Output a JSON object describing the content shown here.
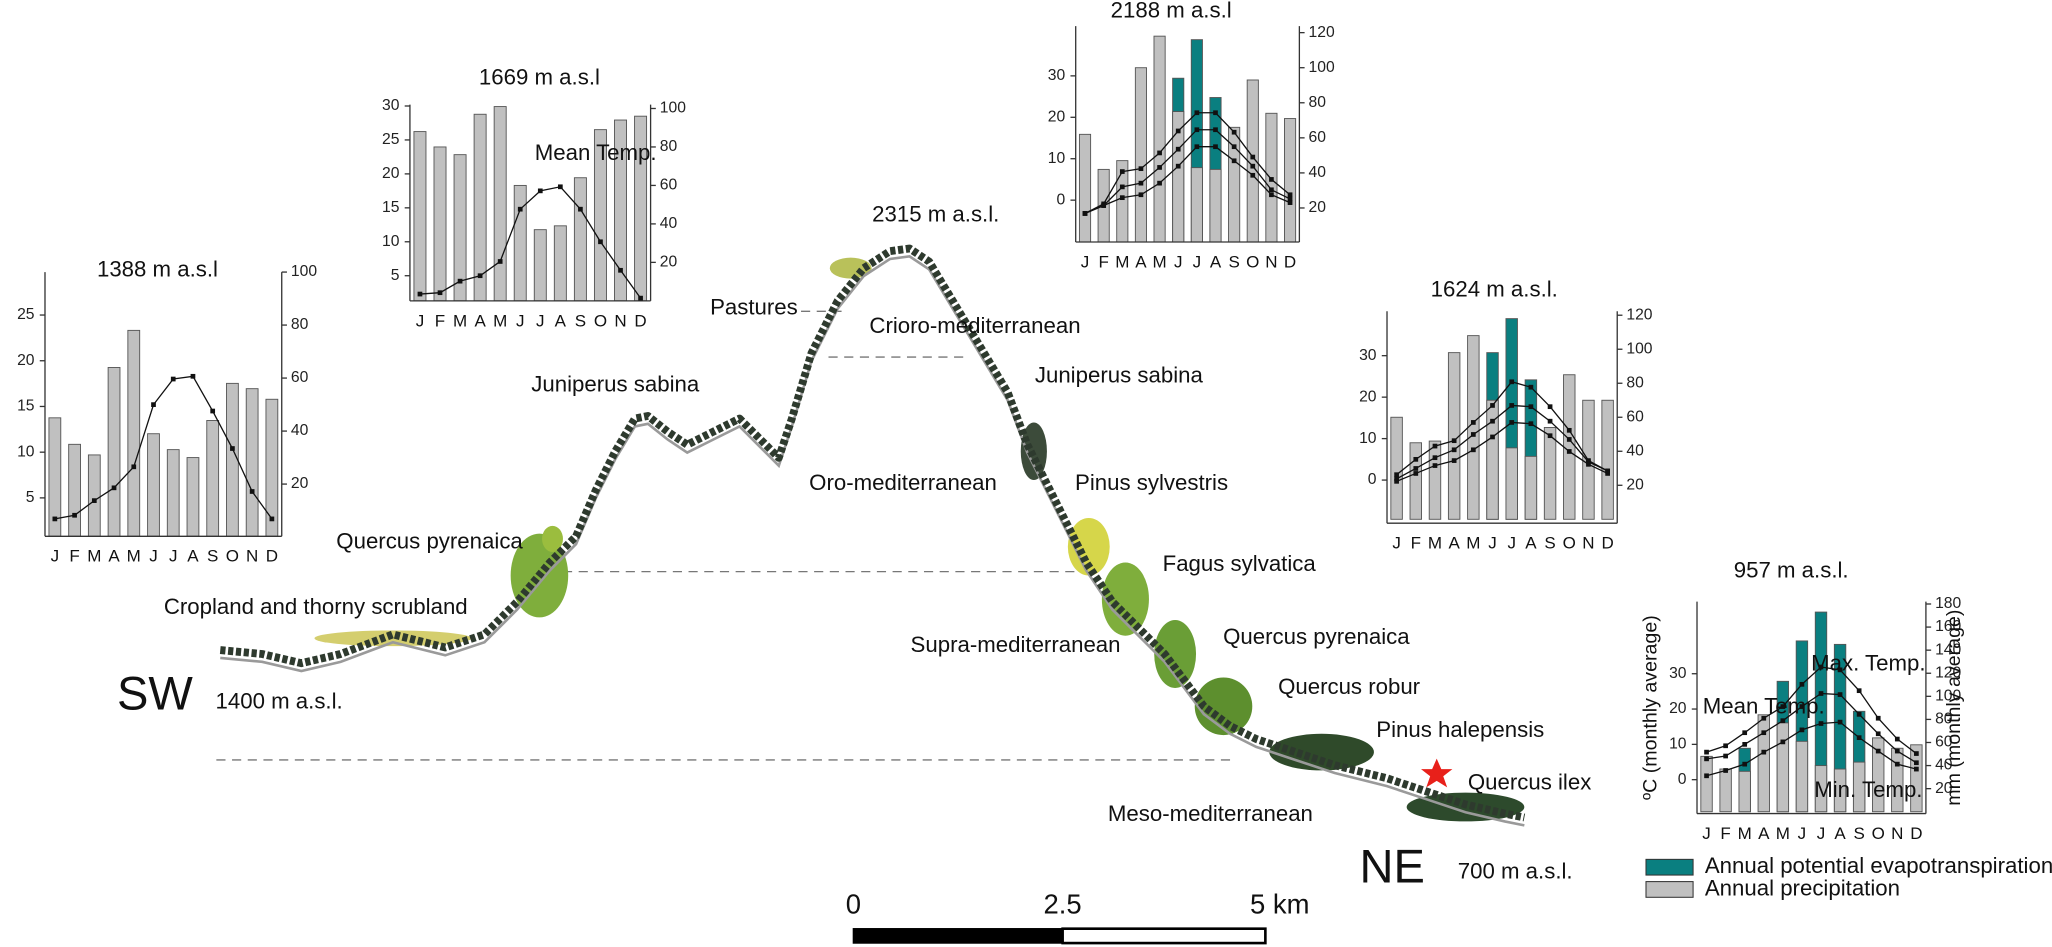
{
  "chart_data": [
    {
      "type": "bar",
      "title": "1388 m a.s.l",
      "categories": [
        "J",
        "F",
        "M",
        "A",
        "M",
        "J",
        "J",
        "A",
        "S",
        "O",
        "N",
        "D"
      ],
      "ylim": [
        0.8,
        29.7
      ],
      "yticks": [
        5,
        10,
        15,
        20,
        25
      ],
      "y2lim": [
        0.3,
        100
      ],
      "y2ticks": [
        20,
        40,
        60,
        80,
        100
      ],
      "series": [
        {
          "kind": "bar",
          "axis": "y2",
          "color": "#c0c0c0",
          "values": [
            45,
            35,
            31,
            64,
            78,
            39,
            33,
            30,
            44,
            58,
            56,
            52
          ]
        },
        {
          "kind": "line",
          "color": "#111111",
          "values": [
            2.7,
            3.1,
            4.7,
            6.1,
            8.4,
            15.2,
            18.0,
            18.3,
            14.5,
            10.4,
            5.7,
            2.7
          ]
        }
      ]
    },
    {
      "type": "bar",
      "title": "1669 m a.s.l",
      "categories": [
        "J",
        "F",
        "M",
        "A",
        "M",
        "J",
        "J",
        "A",
        "S",
        "O",
        "N",
        "D"
      ],
      "ylim": [
        1.3,
        30.2
      ],
      "yticks": [
        5,
        10,
        15,
        20,
        25,
        30
      ],
      "y2lim": [
        0,
        102
      ],
      "y2ticks": [
        20,
        40,
        60,
        80,
        100
      ],
      "annotations": [
        "Mean Temp."
      ],
      "series": [
        {
          "kind": "bar",
          "axis": "y2",
          "color": "#c0c0c0",
          "values": [
            88,
            80,
            76,
            97,
            101,
            60,
            37,
            39,
            64,
            89,
            94,
            96
          ]
        },
        {
          "kind": "line",
          "color": "#111111",
          "values": [
            2.3,
            2.5,
            4.2,
            5.0,
            7.1,
            14.8,
            17.5,
            18.1,
            14.8,
            10.0,
            5.8,
            1.7
          ]
        }
      ]
    },
    {
      "type": "bar",
      "title": "2188 m a.s.l",
      "categories": [
        "J",
        "F",
        "M",
        "A",
        "M",
        "J",
        "J",
        "A",
        "S",
        "O",
        "N",
        "D"
      ],
      "ylim": [
        -10.1,
        42
      ],
      "yticks": [
        0,
        10,
        20,
        30
      ],
      "y2lim": [
        0.6,
        123.7
      ],
      "y2ticks": [
        20,
        40,
        60,
        80,
        100,
        120
      ],
      "series": [
        {
          "kind": "bar",
          "axis": "y2",
          "color": "#0a7f80",
          "values": [
            null,
            null,
            null,
            null,
            null,
            94,
            116,
            83,
            null,
            null,
            null,
            null
          ]
        },
        {
          "kind": "bar",
          "axis": "y2",
          "color": "#c0c0c0",
          "values": [
            62,
            42,
            47,
            100,
            118,
            75,
            43,
            42,
            66,
            93,
            74,
            71
          ]
        },
        {
          "kind": "line",
          "color": "#111111",
          "values": [
            -3.2,
            -0.9,
            6.9,
            7.6,
            11.4,
            16.7,
            21.1,
            21.1,
            16.4,
            10.4,
            5.0,
            1.3
          ]
        },
        {
          "kind": "line",
          "color": "#111111",
          "values": [
            -3.2,
            -1.3,
            3.2,
            4.1,
            7.9,
            12.3,
            17.0,
            17.0,
            12.9,
            8.2,
            2.5,
            0.3
          ]
        },
        {
          "kind": "line",
          "color": "#111111",
          "values": [
            -3.2,
            -1.3,
            0.6,
            1.3,
            4.1,
            8.2,
            12.9,
            12.9,
            9.5,
            6.0,
            1.3,
            -0.6
          ]
        }
      ]
    },
    {
      "type": "bar",
      "title": "1624 m a.s.l.",
      "categories": [
        "J",
        "F",
        "M",
        "A",
        "M",
        "J",
        "J",
        "A",
        "S",
        "O",
        "N",
        "D"
      ],
      "ylim": [
        -10.4,
        40.7
      ],
      "yticks": [
        0,
        10,
        20,
        30
      ],
      "y2lim": [
        -2.3,
        122.3
      ],
      "y2ticks": [
        20,
        40,
        60,
        80,
        100,
        120
      ],
      "series": [
        {
          "kind": "bar",
          "axis": "y2",
          "color": "#0a7f80",
          "values": [
            null,
            null,
            null,
            null,
            null,
            98,
            118,
            82,
            null,
            null,
            null,
            null
          ]
        },
        {
          "kind": "bar",
          "axis": "y2",
          "color": "#c0c0c0",
          "values": [
            60,
            45,
            46,
            98,
            108,
            70,
            42,
            37,
            54,
            85,
            70,
            70
          ]
        },
        {
          "kind": "line",
          "color": "#111111",
          "values": [
            1.3,
            5.0,
            8.2,
            9.5,
            13.9,
            18.0,
            23.7,
            22.4,
            17.7,
            12.0,
            4.7,
            2.2
          ]
        },
        {
          "kind": "line",
          "color": "#111111",
          "values": [
            0.3,
            2.8,
            5.4,
            7.3,
            11.0,
            14.2,
            18.0,
            17.7,
            14.2,
            9.8,
            4.4,
            2.2
          ]
        },
        {
          "kind": "line",
          "color": "#111111",
          "values": [
            -0.3,
            1.6,
            3.5,
            4.7,
            7.3,
            10.4,
            13.9,
            13.6,
            10.7,
            6.9,
            3.8,
            1.6
          ]
        }
      ]
    },
    {
      "type": "bar",
      "title": "957 m a.s.l.",
      "categories": [
        "J",
        "F",
        "M",
        "A",
        "M",
        "J",
        "J",
        "A",
        "S",
        "O",
        "N",
        "D"
      ],
      "ylabel": "ºC (monthly average)",
      "y2label": "mm (monthly average)",
      "ylim": [
        -9.6,
        50.4
      ],
      "yticks": [
        0,
        10,
        20,
        30
      ],
      "y2lim": [
        -1.6,
        182
      ],
      "y2ticks": [
        20,
        40,
        60,
        80,
        100,
        120,
        140,
        160,
        180
      ],
      "annotations": [
        "Mean Temp.",
        "Max. Temp.",
        "Min. Temp."
      ],
      "series": [
        {
          "kind": "bar",
          "axis": "y2",
          "color": "#0a7f80",
          "values": [
            null,
            null,
            55,
            null,
            113,
            148,
            173,
            145,
            87,
            null,
            null,
            null
          ]
        },
        {
          "kind": "bar",
          "axis": "y2",
          "color": "#c0c0c0",
          "values": [
            48,
            37,
            35,
            84,
            77,
            61,
            40,
            37,
            43,
            64,
            55,
            58
          ]
        },
        {
          "kind": "line",
          "color": "#111111",
          "values": [
            7.8,
            9.6,
            13.3,
            17.4,
            20.7,
            27.0,
            31.9,
            31.1,
            25.2,
            17.4,
            11.5,
            7.4
          ]
        },
        {
          "kind": "line",
          "color": "#111111",
          "values": [
            5.9,
            6.7,
            10.0,
            13.3,
            16.7,
            20.7,
            24.4,
            24.1,
            18.5,
            13.0,
            8.1,
            4.8
          ]
        },
        {
          "kind": "line",
          "color": "#111111",
          "values": [
            1.1,
            2.6,
            4.4,
            7.8,
            10.7,
            14.1,
            15.9,
            16.3,
            11.9,
            8.1,
            4.4,
            3.0
          ]
        }
      ]
    }
  ],
  "legend": {
    "items": [
      {
        "label": "Annual potential evapotranspiration",
        "color": "#0a7f80"
      },
      {
        "label": "Annual precipitation",
        "color": "#c0c0c0"
      }
    ]
  },
  "profile": {
    "summit": "2315 m a.s.l.",
    "sw": "SW",
    "sw_elevation": "1400 m a.s.l.",
    "ne": "NE",
    "ne_elevation": "700 m a.s.l.",
    "labels": [
      "Pastures",
      "Crioro-mediterranean",
      "Juniperus sabina",
      "Juniperus sabina",
      "Oro-mediterranean",
      "Pinus sylvestris",
      "Quercus pyrenaica",
      "Fagus sylvatica",
      "Cropland and thorny scrubland",
      "Supra-mediterranean",
      "Quercus pyrenaica",
      "Quercus robur",
      "Pinus halepensis",
      "Quercus ilex",
      "Meso-mediterranean"
    ]
  },
  "scale_bar": {
    "labels": [
      "0",
      "2.5",
      "5 km"
    ]
  }
}
